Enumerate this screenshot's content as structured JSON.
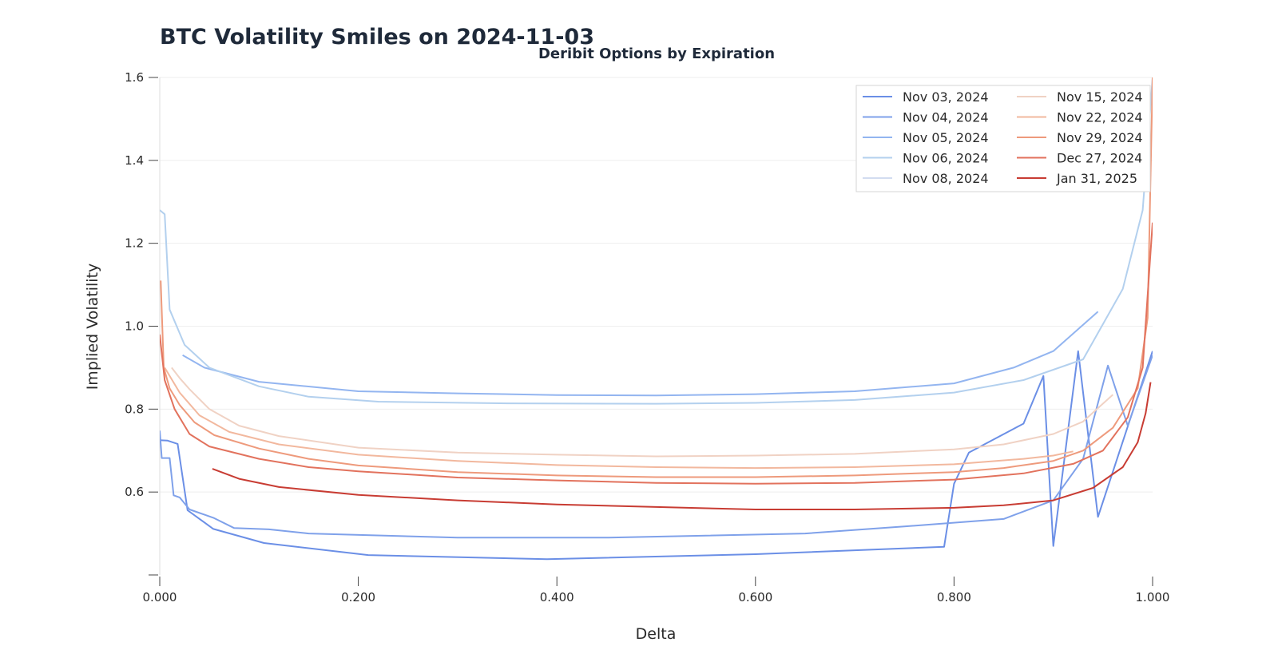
{
  "chart_data": {
    "type": "line",
    "title": "BTC Volatility Smiles on 2024-11-03",
    "subtitle": "Deribit Options by Expiration",
    "xlabel": "Delta",
    "ylabel": "Implied Volatility",
    "xlim": [
      0,
      1
    ],
    "ylim": [
      0.4,
      1.6
    ],
    "x_ticks": [
      0,
      0.2,
      0.4,
      0.6,
      0.8,
      1.0
    ],
    "x_tick_labels": [
      "0.000",
      "0.200",
      "0.400",
      "0.600",
      "0.800",
      "1.000"
    ],
    "y_ticks": [
      0.6,
      0.8,
      1.0,
      1.2,
      1.4,
      1.6
    ],
    "y_tick_labels": [
      "0.6",
      "0.8",
      "1.0",
      "1.2",
      "1.4",
      "1.6"
    ],
    "grid": true,
    "legend": "top-right",
    "series": [
      {
        "name": "Nov 03, 2024",
        "color": "#6b8fe6",
        "points": [
          [
            0.0,
            0.725
          ],
          [
            0.008,
            0.724
          ],
          [
            0.018,
            0.716
          ],
          [
            0.028,
            0.556
          ],
          [
            0.054,
            0.511
          ],
          [
            0.105,
            0.477
          ],
          [
            0.21,
            0.448
          ],
          [
            0.39,
            0.438
          ],
          [
            0.6,
            0.45
          ],
          [
            0.79,
            0.468
          ],
          [
            0.8,
            0.62
          ],
          [
            0.815,
            0.695
          ],
          [
            0.87,
            0.765
          ],
          [
            0.89,
            0.88
          ],
          [
            0.9,
            0.47
          ],
          [
            0.925,
            0.94
          ],
          [
            0.945,
            0.54
          ],
          [
            1.0,
            0.94
          ]
        ]
      },
      {
        "name": "Nov 04, 2024",
        "color": "#7fa1ea",
        "points": [
          [
            0.0,
            0.748
          ],
          [
            0.002,
            0.682
          ],
          [
            0.01,
            0.682
          ],
          [
            0.014,
            0.592
          ],
          [
            0.02,
            0.587
          ],
          [
            0.03,
            0.558
          ],
          [
            0.054,
            0.538
          ],
          [
            0.075,
            0.513
          ],
          [
            0.11,
            0.51
          ],
          [
            0.15,
            0.5
          ],
          [
            0.3,
            0.49
          ],
          [
            0.45,
            0.49
          ],
          [
            0.65,
            0.5
          ],
          [
            0.75,
            0.517
          ],
          [
            0.85,
            0.535
          ],
          [
            0.9,
            0.58
          ],
          [
            0.93,
            0.68
          ],
          [
            0.955,
            0.905
          ],
          [
            0.975,
            0.76
          ],
          [
            1.0,
            0.93
          ]
        ]
      },
      {
        "name": "Nov 05, 2024",
        "color": "#93b5f0",
        "points": [
          [
            0.023,
            0.93
          ],
          [
            0.045,
            0.9
          ],
          [
            0.1,
            0.866
          ],
          [
            0.2,
            0.843
          ],
          [
            0.3,
            0.838
          ],
          [
            0.4,
            0.834
          ],
          [
            0.5,
            0.833
          ],
          [
            0.6,
            0.836
          ],
          [
            0.7,
            0.843
          ],
          [
            0.8,
            0.862
          ],
          [
            0.86,
            0.9
          ],
          [
            0.9,
            0.94
          ],
          [
            0.945,
            1.035
          ]
        ]
      },
      {
        "name": "Nov 06, 2024",
        "color": "#b3d0ee",
        "points": [
          [
            0.0,
            1.28
          ],
          [
            0.005,
            1.27
          ],
          [
            0.01,
            1.04
          ],
          [
            0.025,
            0.955
          ],
          [
            0.05,
            0.9
          ],
          [
            0.1,
            0.855
          ],
          [
            0.15,
            0.83
          ],
          [
            0.22,
            0.818
          ],
          [
            0.35,
            0.814
          ],
          [
            0.5,
            0.813
          ],
          [
            0.6,
            0.815
          ],
          [
            0.7,
            0.822
          ],
          [
            0.8,
            0.84
          ],
          [
            0.87,
            0.87
          ],
          [
            0.93,
            0.92
          ],
          [
            0.97,
            1.09
          ],
          [
            0.99,
            1.28
          ],
          [
            1.0,
            1.6
          ]
        ]
      },
      {
        "name": "Nov 08, 2024",
        "color": "#d2dcf0",
        "points": []
      },
      {
        "name": "Nov 15, 2024",
        "color": "#f0d2c4",
        "points": [
          [
            0.012,
            0.9
          ],
          [
            0.02,
            0.875
          ],
          [
            0.03,
            0.848
          ],
          [
            0.05,
            0.8
          ],
          [
            0.08,
            0.76
          ],
          [
            0.12,
            0.735
          ],
          [
            0.2,
            0.707
          ],
          [
            0.3,
            0.695
          ],
          [
            0.4,
            0.69
          ],
          [
            0.5,
            0.686
          ],
          [
            0.6,
            0.688
          ],
          [
            0.7,
            0.692
          ],
          [
            0.8,
            0.703
          ],
          [
            0.85,
            0.715
          ],
          [
            0.9,
            0.74
          ],
          [
            0.93,
            0.77
          ],
          [
            0.96,
            0.835
          ]
        ]
      },
      {
        "name": "Nov 22, 2024",
        "color": "#f2b89e",
        "points": [
          [
            0.005,
            0.9
          ],
          [
            0.02,
            0.84
          ],
          [
            0.04,
            0.785
          ],
          [
            0.07,
            0.745
          ],
          [
            0.12,
            0.715
          ],
          [
            0.2,
            0.69
          ],
          [
            0.3,
            0.675
          ],
          [
            0.4,
            0.665
          ],
          [
            0.5,
            0.66
          ],
          [
            0.6,
            0.658
          ],
          [
            0.7,
            0.66
          ],
          [
            0.8,
            0.667
          ],
          [
            0.87,
            0.68
          ],
          [
            0.9,
            0.688
          ],
          [
            0.92,
            0.698
          ]
        ]
      },
      {
        "name": "Nov 29, 2024",
        "color": "#ee9a7c",
        "points": [
          [
            0.001,
            1.11
          ],
          [
            0.004,
            0.9
          ],
          [
            0.01,
            0.85
          ],
          [
            0.02,
            0.81
          ],
          [
            0.035,
            0.768
          ],
          [
            0.055,
            0.737
          ],
          [
            0.1,
            0.705
          ],
          [
            0.15,
            0.68
          ],
          [
            0.2,
            0.664
          ],
          [
            0.3,
            0.648
          ],
          [
            0.4,
            0.64
          ],
          [
            0.5,
            0.636
          ],
          [
            0.6,
            0.636
          ],
          [
            0.7,
            0.64
          ],
          [
            0.8,
            0.648
          ],
          [
            0.85,
            0.658
          ],
          [
            0.9,
            0.675
          ],
          [
            0.93,
            0.7
          ],
          [
            0.96,
            0.755
          ],
          [
            0.985,
            0.85
          ],
          [
            0.995,
            1.02
          ],
          [
            1.0,
            1.6
          ]
        ]
      },
      {
        "name": "Dec 27, 2024",
        "color": "#e2725d",
        "points": [
          [
            0.0,
            0.98
          ],
          [
            0.005,
            0.87
          ],
          [
            0.015,
            0.8
          ],
          [
            0.03,
            0.74
          ],
          [
            0.05,
            0.71
          ],
          [
            0.1,
            0.68
          ],
          [
            0.15,
            0.66
          ],
          [
            0.2,
            0.65
          ],
          [
            0.3,
            0.635
          ],
          [
            0.4,
            0.628
          ],
          [
            0.5,
            0.622
          ],
          [
            0.6,
            0.62
          ],
          [
            0.7,
            0.622
          ],
          [
            0.8,
            0.63
          ],
          [
            0.87,
            0.645
          ],
          [
            0.92,
            0.668
          ],
          [
            0.95,
            0.7
          ],
          [
            0.975,
            0.78
          ],
          [
            0.99,
            0.9
          ],
          [
            1.0,
            1.25
          ]
        ]
      },
      {
        "name": "Jan 31, 2025",
        "color": "#c83c33",
        "points": [
          [
            0.053,
            0.656
          ],
          [
            0.08,
            0.632
          ],
          [
            0.12,
            0.612
          ],
          [
            0.2,
            0.593
          ],
          [
            0.3,
            0.58
          ],
          [
            0.4,
            0.57
          ],
          [
            0.5,
            0.564
          ],
          [
            0.6,
            0.558
          ],
          [
            0.7,
            0.558
          ],
          [
            0.8,
            0.562
          ],
          [
            0.85,
            0.568
          ],
          [
            0.9,
            0.58
          ],
          [
            0.94,
            0.61
          ],
          [
            0.97,
            0.66
          ],
          [
            0.985,
            0.72
          ],
          [
            0.993,
            0.79
          ],
          [
            0.998,
            0.865
          ]
        ]
      }
    ]
  }
}
